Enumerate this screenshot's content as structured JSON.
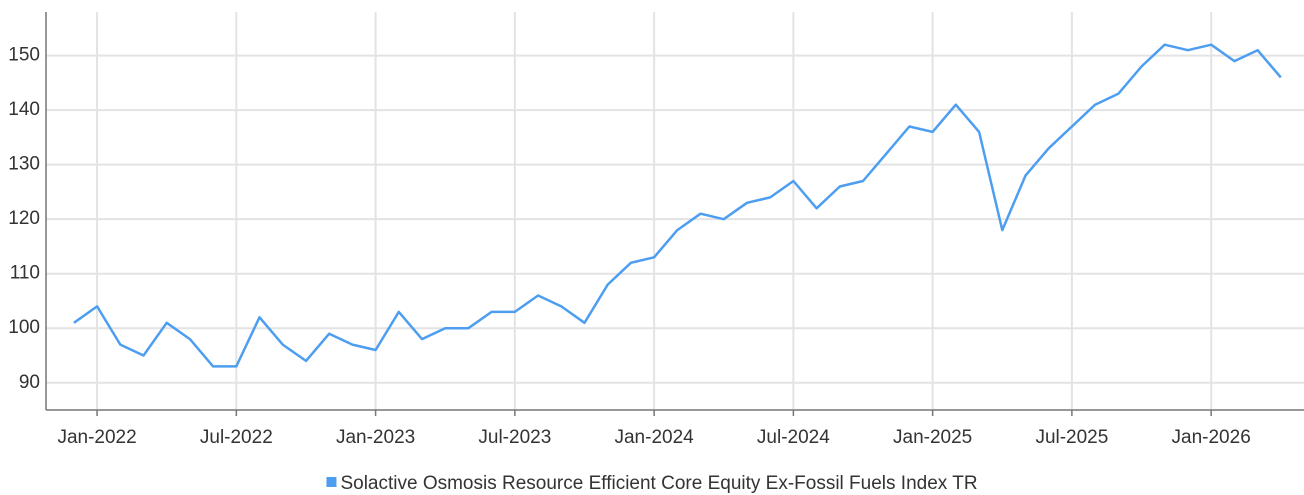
{
  "chart_data": {
    "type": "line",
    "x": [
      "2021-12",
      "2022-01",
      "2022-02",
      "2022-03",
      "2022-04",
      "2022-05",
      "2022-06",
      "2022-07",
      "2022-08",
      "2022-09",
      "2022-10",
      "2022-11",
      "2022-12",
      "2023-01",
      "2023-02",
      "2023-03",
      "2023-04",
      "2023-05",
      "2023-06",
      "2023-07",
      "2023-08",
      "2023-09",
      "2023-10",
      "2023-11",
      "2023-12",
      "2024-01",
      "2024-02",
      "2024-03",
      "2024-04",
      "2024-05",
      "2024-06",
      "2024-07",
      "2024-08",
      "2024-09",
      "2024-10",
      "2024-11",
      "2024-12",
      "2025-01",
      "2025-02",
      "2025-03",
      "2025-04",
      "2025-05",
      "2025-06",
      "2025-07",
      "2025-08",
      "2025-09",
      "2025-10",
      "2025-11",
      "2025-12",
      "2026-01",
      "2026-02",
      "2026-03",
      "2026-04"
    ],
    "series": [
      {
        "name": "Solactive Osmosis Resource Efficient Core Equity Ex-Fossil Fuels Index TR",
        "color": "#4d9ef0",
        "values": [
          101,
          104,
          97,
          95,
          101,
          98,
          93,
          93,
          102,
          97,
          94,
          99,
          97,
          96,
          103,
          98,
          100,
          100,
          103,
          103,
          106,
          104,
          101,
          108,
          112,
          113,
          118,
          121,
          120,
          123,
          124,
          127,
          122,
          126,
          127,
          132,
          137,
          136,
          141,
          136,
          118,
          128,
          133,
          137,
          141,
          143,
          148,
          152,
          151,
          152,
          149,
          151,
          146
        ]
      }
    ],
    "xlim": [
      "2021-11",
      "2026-05"
    ],
    "xticks": [
      {
        "value": "2022-01",
        "label": "Jan-2022"
      },
      {
        "value": "2022-07",
        "label": "Jul-2022"
      },
      {
        "value": "2023-01",
        "label": "Jan-2023"
      },
      {
        "value": "2023-07",
        "label": "Jul-2023"
      },
      {
        "value": "2024-01",
        "label": "Jan-2024"
      },
      {
        "value": "2024-07",
        "label": "Jul-2024"
      },
      {
        "value": "2025-01",
        "label": "Jan-2025"
      },
      {
        "value": "2025-07",
        "label": "Jul-2025"
      },
      {
        "value": "2026-01",
        "label": "Jan-2026"
      }
    ],
    "ylim": [
      85,
      158
    ],
    "yticks": [
      90,
      100,
      110,
      120,
      130,
      140,
      150
    ],
    "grid": true,
    "legend": "bottom"
  }
}
